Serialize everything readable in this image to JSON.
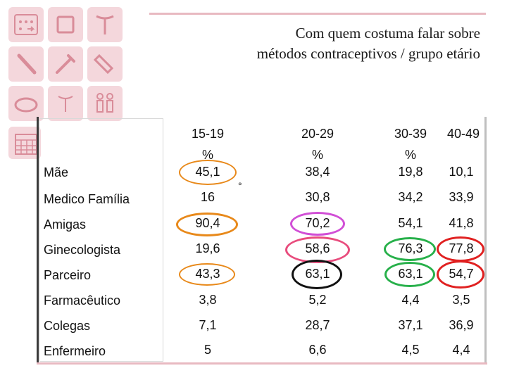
{
  "title": {
    "line1": "Com quem costuma falar sobre",
    "line2": "métodos contraceptivos / grupo etário"
  },
  "icons": [
    "calendar-pill-icon",
    "square-patch-icon",
    "iud-icon",
    "implant-rod-icon",
    "syringe-icon",
    "vial-icon",
    "diaphragm-icon",
    "iud-small-icon",
    "body-outline-icon",
    "calendar-grid-icon"
  ],
  "table": {
    "headers": [
      {
        "line1": "15-19",
        "line2": "%"
      },
      {
        "line1": "20-29",
        "line2": "%"
      },
      {
        "line1": "30-39",
        "line2": "%"
      },
      {
        "line1": "40-49",
        "line2": ""
      }
    ],
    "rows": [
      {
        "label": "Mãe",
        "values": [
          "45,1",
          "38,4",
          "19,8",
          "10,1"
        ]
      },
      {
        "label": "Medico Família",
        "values": [
          "16",
          "30,8",
          "34,2",
          "33,9"
        ]
      },
      {
        "label": "Amigas",
        "values": [
          "90,4",
          "70,2",
          "54,1",
          "41,8"
        ]
      },
      {
        "label": "Ginecologista",
        "values": [
          "19,6",
          "58,6",
          "76,3",
          "77,8"
        ]
      },
      {
        "label": "Parceiro",
        "values": [
          "43,3",
          "63,1",
          "63,1",
          "54,7"
        ]
      },
      {
        "label": "Farmacêutico",
        "values": [
          "3,8",
          "5,2",
          "4,4",
          "3,5"
        ]
      },
      {
        "label": "Colegas",
        "values": [
          "7,1",
          "28,7",
          "37,1",
          "36,9"
        ]
      },
      {
        "label": "Enfermeiro",
        "values": [
          "5",
          "6,6",
          "4,5",
          "4,4"
        ]
      }
    ],
    "stray_mark": "°"
  },
  "highlight_colors": {
    "orange": "#e8891a",
    "violet": "#d14fd6",
    "pink": "#e84c7d",
    "black": "#111111",
    "green": "#27b04a",
    "red": "#e02020"
  }
}
